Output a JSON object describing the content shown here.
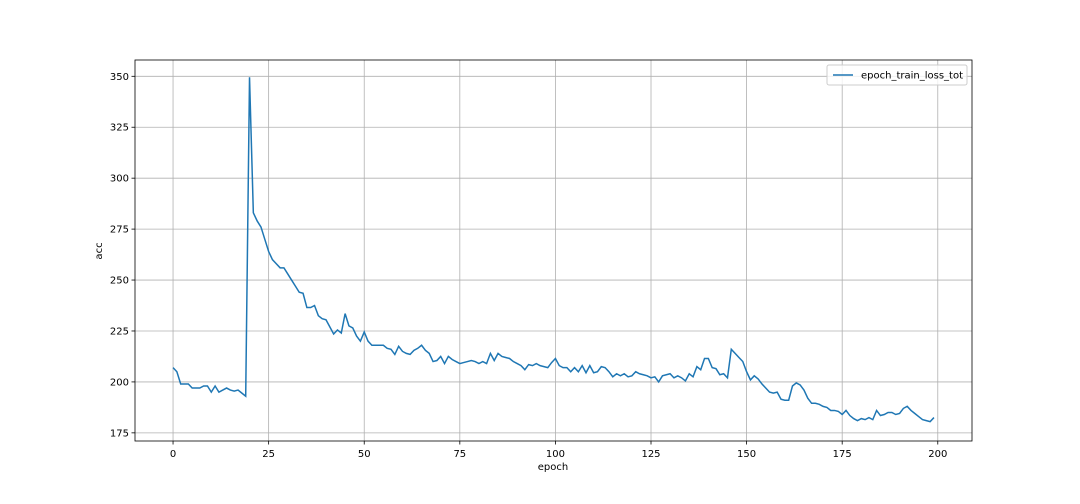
{
  "chart_data": {
    "type": "line",
    "xlabel": "epoch",
    "ylabel": "acc",
    "x": [
      0,
      1,
      2,
      3,
      4,
      5,
      6,
      7,
      8,
      9,
      10,
      11,
      12,
      13,
      14,
      15,
      16,
      17,
      18,
      19,
      20,
      21,
      22,
      23,
      24,
      25,
      26,
      27,
      28,
      29,
      30,
      31,
      32,
      33,
      34,
      35,
      36,
      37,
      38,
      39,
      40,
      41,
      42,
      43,
      44,
      45,
      46,
      47,
      48,
      49,
      50,
      51,
      52,
      53,
      54,
      55,
      56,
      57,
      58,
      59,
      60,
      61,
      62,
      63,
      64,
      65,
      66,
      67,
      68,
      69,
      70,
      71,
      72,
      73,
      74,
      75,
      76,
      77,
      78,
      79,
      80,
      81,
      82,
      83,
      84,
      85,
      86,
      87,
      88,
      89,
      90,
      91,
      92,
      93,
      94,
      95,
      96,
      97,
      98,
      99,
      100,
      101,
      102,
      103,
      104,
      105,
      106,
      107,
      108,
      109,
      110,
      111,
      112,
      113,
      114,
      115,
      116,
      117,
      118,
      119,
      120,
      121,
      122,
      123,
      124,
      125,
      126,
      127,
      128,
      129,
      130,
      131,
      132,
      133,
      134,
      135,
      136,
      137,
      138,
      139,
      140,
      141,
      142,
      143,
      144,
      145,
      146,
      147,
      148,
      149,
      150,
      151,
      152,
      153,
      154,
      155,
      156,
      157,
      158,
      159,
      160,
      161,
      162,
      163,
      164,
      165,
      166,
      167,
      168,
      169,
      170,
      171,
      172,
      173,
      174,
      175,
      176,
      177,
      178,
      179,
      180,
      181,
      182,
      183,
      184,
      185,
      186,
      187,
      188,
      189,
      190,
      191,
      192,
      193,
      194,
      195,
      196,
      197,
      198,
      199
    ],
    "series": [
      {
        "name": "epoch_train_loss_tot",
        "color": "#1f77b4",
        "values": [
          207,
          205,
          199,
          199,
          199,
          197,
          197,
          197,
          198,
          198,
          195,
          198,
          195,
          196,
          197,
          196,
          195.5,
          196,
          194.5,
          193,
          349.5,
          283,
          279,
          276,
          270,
          264,
          260,
          258,
          256,
          256,
          253,
          250,
          247,
          244,
          243.5,
          236.5,
          236.5,
          237.5,
          232.5,
          231,
          230.5,
          227,
          223.5,
          225.5,
          224,
          233.5,
          227.5,
          226.5,
          222.5,
          220,
          224.5,
          220,
          218,
          218,
          218,
          218,
          216.5,
          216,
          213.5,
          217.5,
          215,
          214,
          213.5,
          215.5,
          216.5,
          218,
          215.5,
          214,
          210,
          210.5,
          212.5,
          209,
          212.5,
          211,
          210,
          209,
          209.5,
          210,
          210.5,
          210,
          209,
          210,
          209,
          214,
          210.5,
          214,
          212.5,
          212,
          211.5,
          210,
          209,
          208,
          206,
          208.5,
          208,
          209,
          208,
          207.5,
          207,
          209.5,
          211.5,
          208,
          207,
          207,
          205,
          207,
          205,
          208,
          204.5,
          208,
          204.5,
          205,
          207.5,
          207,
          205,
          202.5,
          204,
          203,
          204,
          202.5,
          203,
          205,
          204,
          203.5,
          203,
          202,
          202.5,
          200,
          203,
          203.5,
          204,
          202,
          203,
          202,
          200.5,
          204,
          202.5,
          207.5,
          206,
          211.5,
          211.5,
          207,
          206.5,
          203.5,
          204,
          202,
          216,
          214,
          212,
          210,
          205,
          201,
          203,
          201.5,
          199,
          197,
          195,
          194.5,
          195,
          191.5,
          191,
          191,
          198,
          199.5,
          198.5,
          196,
          192,
          189.5,
          189.5,
          189,
          188,
          187.5,
          186,
          186,
          185.5,
          184,
          186,
          183.5,
          182,
          181,
          182,
          181.5,
          182.5,
          181.5,
          186,
          183.5,
          184,
          185,
          185,
          184,
          184.5,
          187,
          188,
          186,
          184.5,
          183,
          181.5,
          181,
          180.5,
          182.5
        ]
      }
    ],
    "xlim": [
      -9.95,
      208.95
    ],
    "ylim": [
      171,
      358
    ],
    "xticks": [
      0,
      25,
      50,
      75,
      100,
      125,
      150,
      175,
      200
    ],
    "yticks": [
      175,
      200,
      225,
      250,
      275,
      300,
      325,
      350
    ],
    "grid": true,
    "legend": "upper right"
  }
}
